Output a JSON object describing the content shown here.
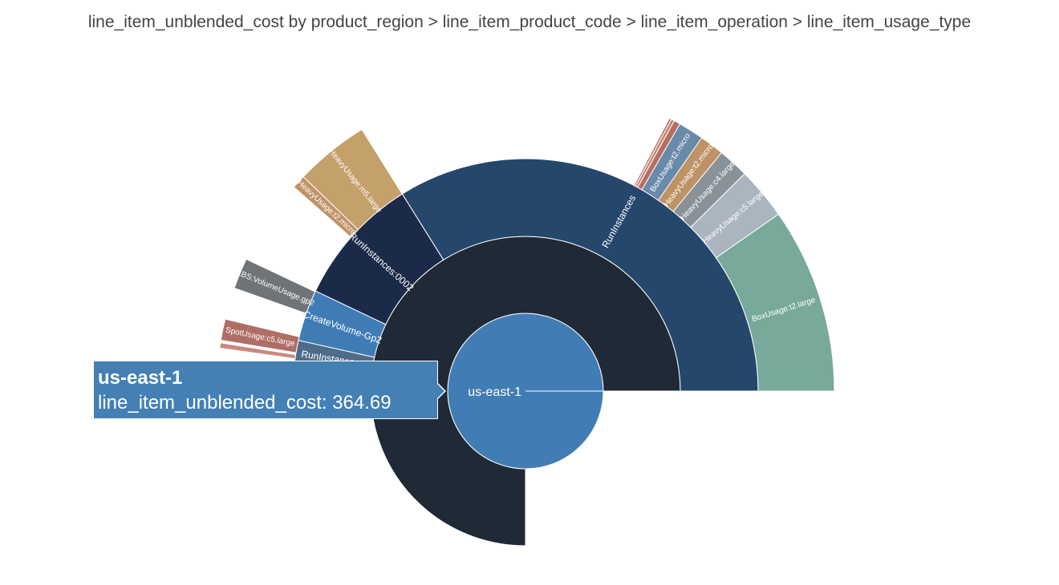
{
  "title": "line_item_unblended_cost by product_region > line_item_product_code > line_item_operation > line_item_usage_type",
  "chart_data": {
    "type": "sunburst",
    "title": "line_item_unblended_cost by product_region > line_item_product_code > line_item_operation > line_item_usage_type",
    "nodes": [
      {
        "id": "root",
        "label": "us-east-1",
        "ring": 1,
        "color": "#417db4"
      },
      {
        "id": "ec2",
        "label": "",
        "ring": 2,
        "color": "#1f2a36"
      },
      {
        "id": "ri",
        "label": "RunInstances",
        "ring": 3,
        "color": "#26476c"
      },
      {
        "id": "ri2",
        "label": "RunInstances:0002",
        "ring": 3,
        "color": "#1c2a4a"
      },
      {
        "id": "cv",
        "label": "CreateVolume-Gp2",
        "ring": 3,
        "color": "#3f7cb6"
      },
      {
        "id": "ri3",
        "label": "RunInstances:0",
        "ring": 3,
        "color": "#4e6b8a"
      },
      {
        "id": "u1",
        "label": "BoxUsage:t2.large",
        "ring": 4,
        "color": "#78a99a"
      },
      {
        "id": "u2",
        "label": "HeavyUsage:c5.large",
        "ring": 4,
        "color": "#aab5c0"
      },
      {
        "id": "u3",
        "label": "HeavyUsage:c4.large",
        "ring": 4,
        "color": "#8a9299"
      },
      {
        "id": "u4",
        "label": "HeavyUsage:t2.micro",
        "ring": 4,
        "color": "#be9365"
      },
      {
        "id": "u5",
        "label": "BoxUsage:t2.micro",
        "ring": 4,
        "color": "#6a8aaa"
      },
      {
        "id": "u6",
        "label": "",
        "ring": 4,
        "color": "#b76e62"
      },
      {
        "id": "u7",
        "label": "",
        "ring": 4,
        "color": "#c08a70"
      },
      {
        "id": "u8",
        "label": "",
        "ring": 4,
        "color": "#b76e62"
      },
      {
        "id": "u9",
        "label": "HeavyUsage:m5.large",
        "ring": 4,
        "color": "#c4a06a"
      },
      {
        "id": "u10",
        "label": "HeavyUsage:t2.micro",
        "ring": 4,
        "color": "#c09268"
      },
      {
        "id": "u11",
        "label": "EBS:VolumeUsage.gp2",
        "ring": 4,
        "color": "#707378"
      },
      {
        "id": "u12",
        "label": "SpotUsage:c5.large",
        "ring": 4,
        "color": "#ae6e66"
      },
      {
        "id": "u13",
        "label": "",
        "ring": 4,
        "color": "#c98a7e"
      }
    ]
  },
  "tooltip": {
    "name": "us-east-1",
    "text": "line_item_unblended_cost: 364.69",
    "color": "#4480b4"
  }
}
